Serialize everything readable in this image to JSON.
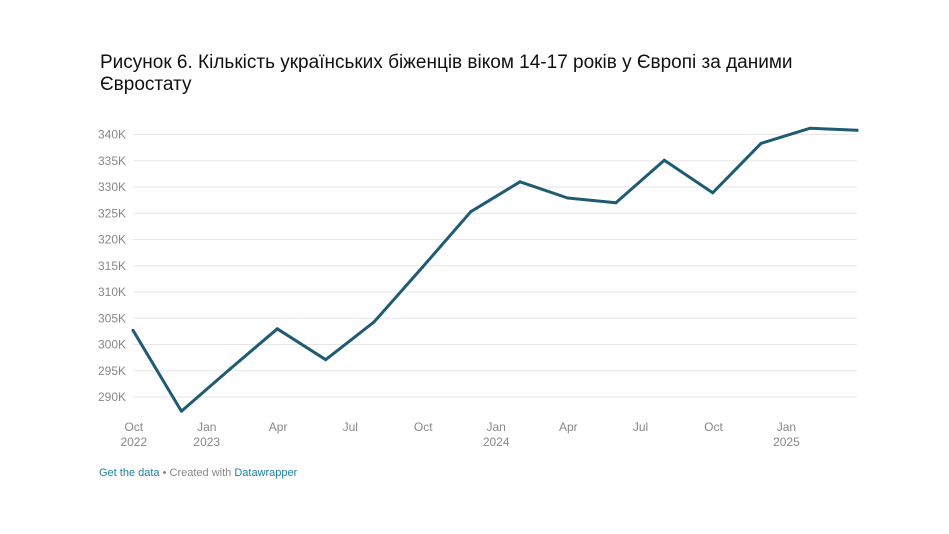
{
  "title": "Рисунок 6. Кількість українських біженців віком 14-17 років у Європі за даними Євростату",
  "footer": {
    "get_data": "Get the data",
    "separator": " • Created with ",
    "tool": "Datawrapper"
  },
  "colors": {
    "line": "#1f5c73",
    "link": "#1d81a2",
    "grid": "#e6e6e6",
    "tick": "#888888"
  },
  "chart_data": {
    "type": "line",
    "title": "Рисунок 6. Кількість українських біженців віком 14-17 років у Європі за даними Євростату",
    "xlabel": "",
    "ylabel": "",
    "ylim": [
      286000,
      342000
    ],
    "yticks": [
      290000,
      295000,
      300000,
      305000,
      310000,
      315000,
      320000,
      325000,
      330000,
      335000,
      340000
    ],
    "ytick_labels": [
      "290K",
      "295K",
      "300K",
      "305K",
      "310K",
      "315K",
      "320K",
      "325K",
      "330K",
      "335K",
      "340K"
    ],
    "xticks": [
      {
        "date": "2022-10",
        "lines": [
          "Oct",
          "2022"
        ]
      },
      {
        "date": "2023-01",
        "lines": [
          "Jan",
          "2023"
        ]
      },
      {
        "date": "2023-04",
        "lines": [
          "Apr"
        ]
      },
      {
        "date": "2023-07",
        "lines": [
          "Jul"
        ]
      },
      {
        "date": "2023-10",
        "lines": [
          "Oct"
        ]
      },
      {
        "date": "2024-01",
        "lines": [
          "Jan",
          "2024"
        ]
      },
      {
        "date": "2024-04",
        "lines": [
          "Apr"
        ]
      },
      {
        "date": "2024-07",
        "lines": [
          "Jul"
        ]
      },
      {
        "date": "2024-10",
        "lines": [
          "Oct"
        ]
      },
      {
        "date": "2025-01",
        "lines": [
          "Jan",
          "2025"
        ]
      }
    ],
    "grid": true,
    "series": [
      {
        "points": [
          {
            "x": "2022-09-30",
            "y": 302700
          },
          {
            "x": "2022-11-30",
            "y": 287300
          },
          {
            "x": "2023-01-31",
            "y": 295400
          },
          {
            "x": "2023-03-31",
            "y": 303000
          },
          {
            "x": "2023-05-31",
            "y": 297100
          },
          {
            "x": "2023-07-31",
            "y": 304300
          },
          {
            "x": "2023-09-30",
            "y": 314700
          },
          {
            "x": "2023-11-30",
            "y": 325300
          },
          {
            "x": "2024-01-31",
            "y": 331000
          },
          {
            "x": "2024-03-31",
            "y": 327900
          },
          {
            "x": "2024-05-31",
            "y": 327000
          },
          {
            "x": "2024-07-31",
            "y": 335100
          },
          {
            "x": "2024-09-30",
            "y": 328900
          },
          {
            "x": "2024-11-30",
            "y": 338300
          },
          {
            "x": "2025-01-31",
            "y": 341200
          },
          {
            "x": "2025-03-31",
            "y": 340800
          }
        ]
      }
    ]
  }
}
